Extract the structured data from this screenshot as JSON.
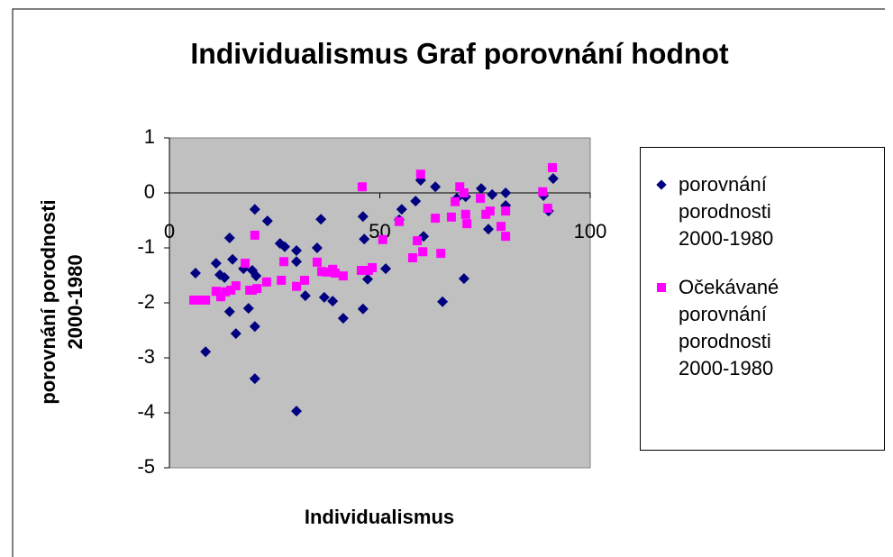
{
  "chart_data": {
    "type": "scatter",
    "title": "Individualismus Graf porovnání hodnot",
    "x_label": "Individualismus",
    "y_label": "porovnání porodnosti 2000-1980",
    "xlim": [
      0,
      100
    ],
    "xticks": [
      0,
      50,
      100
    ],
    "ylim": [
      -5,
      1
    ],
    "yticks": [
      1,
      0,
      -1,
      -2,
      -3,
      -4,
      -5
    ],
    "legend": "right",
    "plot_background": "#c0c0c0",
    "series": [
      {
        "name": "porovnání porodnosti 2000-1980",
        "color": "#000080",
        "marker": "diamond",
        "x": [
          6.2,
          8.6,
          11.1,
          12.0,
          13.1,
          14.3,
          14.3,
          15.0,
          15.8,
          17.6,
          18.8,
          19.7,
          20.3,
          20.3,
          20.3,
          20.6,
          23.3,
          26.3,
          27.4,
          30.2,
          30.2,
          30.2,
          32.3,
          35.1,
          36.0,
          36.8,
          38.8,
          41.3,
          46.0,
          46.0,
          46.3,
          47.1,
          51.4,
          54.6,
          55.2,
          58.5,
          59.7,
          60.4,
          63.2,
          64.9,
          68.3,
          70.0,
          70.4,
          74.1,
          75.8,
          76.7,
          79.9,
          79.9,
          88.9,
          90.1,
          91.2
        ],
        "values": [
          -1.46,
          -2.89,
          -1.28,
          -1.49,
          -1.54,
          -0.82,
          -2.16,
          -1.21,
          -2.56,
          -1.38,
          -2.1,
          -1.41,
          -0.3,
          -2.43,
          -3.38,
          -1.51,
          -0.51,
          -0.92,
          -0.98,
          -1.05,
          -1.25,
          -3.97,
          -1.87,
          -1.0,
          -0.48,
          -1.9,
          -1.97,
          -2.28,
          -0.43,
          -2.11,
          -0.84,
          -1.57,
          -1.38,
          -0.49,
          -0.3,
          -0.15,
          0.23,
          -0.79,
          0.11,
          -1.98,
          -0.1,
          -1.56,
          -0.07,
          0.08,
          -0.66,
          -0.03,
          0.0,
          -0.23,
          -0.05,
          -0.33,
          0.26
        ]
      },
      {
        "name": "Očekávané porovnání porodnosti 2000-1980",
        "color": "#ff00ff",
        "marker": "square",
        "x": [
          5.8,
          7.1,
          8.6,
          11.1,
          12.2,
          13.3,
          14.6,
          15.8,
          18.0,
          19.1,
          19.7,
          20.3,
          20.8,
          23.1,
          26.6,
          27.2,
          30.2,
          32.1,
          35.1,
          36.2,
          37.3,
          38.8,
          39.4,
          41.3,
          45.6,
          45.8,
          47.3,
          48.2,
          50.7,
          54.6,
          57.8,
          58.9,
          59.7,
          60.2,
          63.2,
          64.5,
          67.0,
          67.9,
          69.0,
          70.0,
          70.4,
          70.7,
          73.9,
          75.2,
          76.2,
          78.8,
          79.9,
          79.9,
          88.7,
          89.9,
          91.0
        ],
        "values": [
          -1.95,
          -1.95,
          -1.95,
          -1.79,
          -1.89,
          -1.8,
          -1.77,
          -1.69,
          -1.28,
          -1.77,
          -1.77,
          -0.77,
          -1.74,
          -1.62,
          -1.59,
          -1.25,
          -1.7,
          -1.59,
          -1.26,
          -1.43,
          -1.44,
          -1.39,
          -1.46,
          -1.51,
          -1.41,
          0.11,
          -1.41,
          -1.36,
          -0.85,
          -0.52,
          -1.18,
          -0.87,
          0.34,
          -1.07,
          -0.46,
          -1.1,
          -0.44,
          -0.16,
          0.11,
          0.0,
          -0.39,
          -0.56,
          -0.1,
          -0.39,
          -0.33,
          -0.61,
          -0.33,
          -0.79,
          0.02,
          -0.28,
          0.46
        ]
      }
    ]
  }
}
